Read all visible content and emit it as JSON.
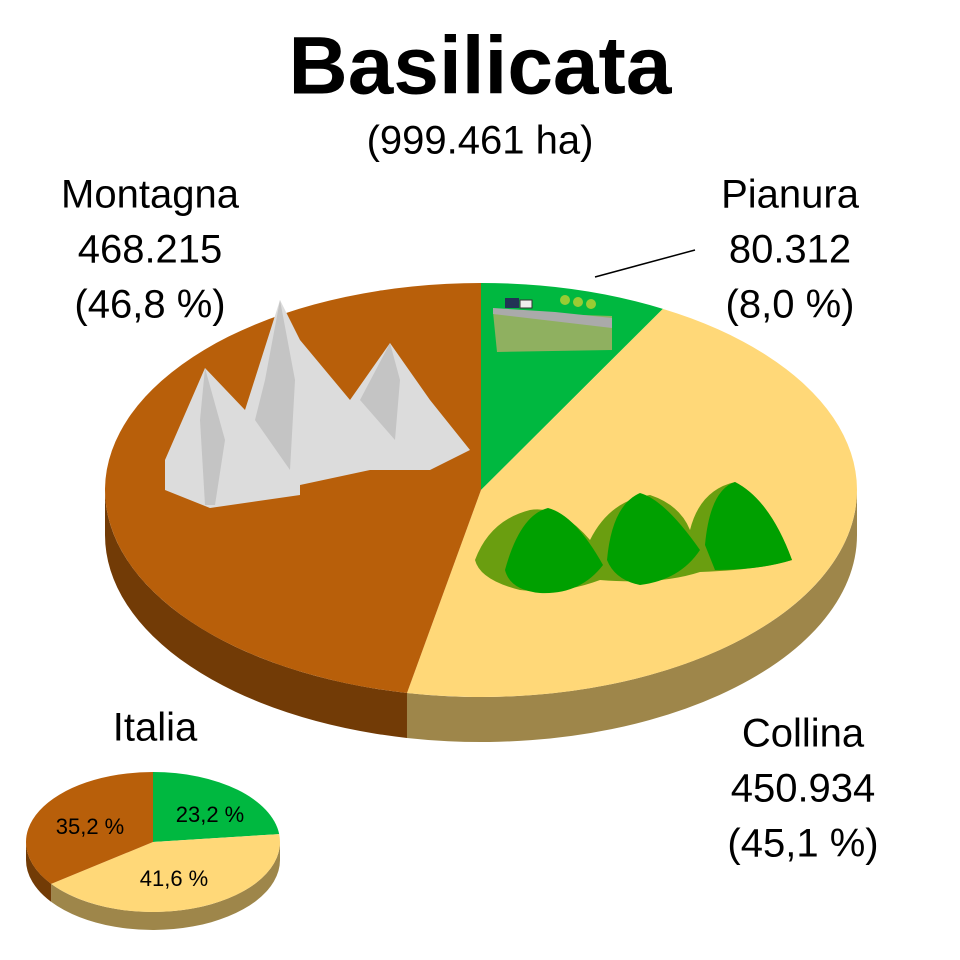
{
  "chart_data": [
    {
      "type": "pie",
      "title": "Basilicata",
      "subtitle": "(999.461 ha)",
      "categories": [
        "Pianura",
        "Collina",
        "Montagna"
      ],
      "values": [
        80312,
        450934,
        468215
      ],
      "value_labels": [
        "80.312",
        "450.934",
        "468.215"
      ],
      "percentages": [
        8.0,
        45.1,
        46.8
      ],
      "percentage_labels": [
        "(8,0 %)",
        "(45,1 %)",
        "(46,8 %)"
      ],
      "colors": [
        "#00b840",
        "#ffd878",
        "#b85f0a"
      ]
    },
    {
      "type": "pie",
      "title": "Italia",
      "values": [
        23.2,
        41.6,
        35.2
      ],
      "value_labels": [
        "23,2 %",
        "41,6 %",
        "35,2 %"
      ],
      "colors": [
        "#00b840",
        "#ffd878",
        "#b85f0a"
      ]
    }
  ]
}
